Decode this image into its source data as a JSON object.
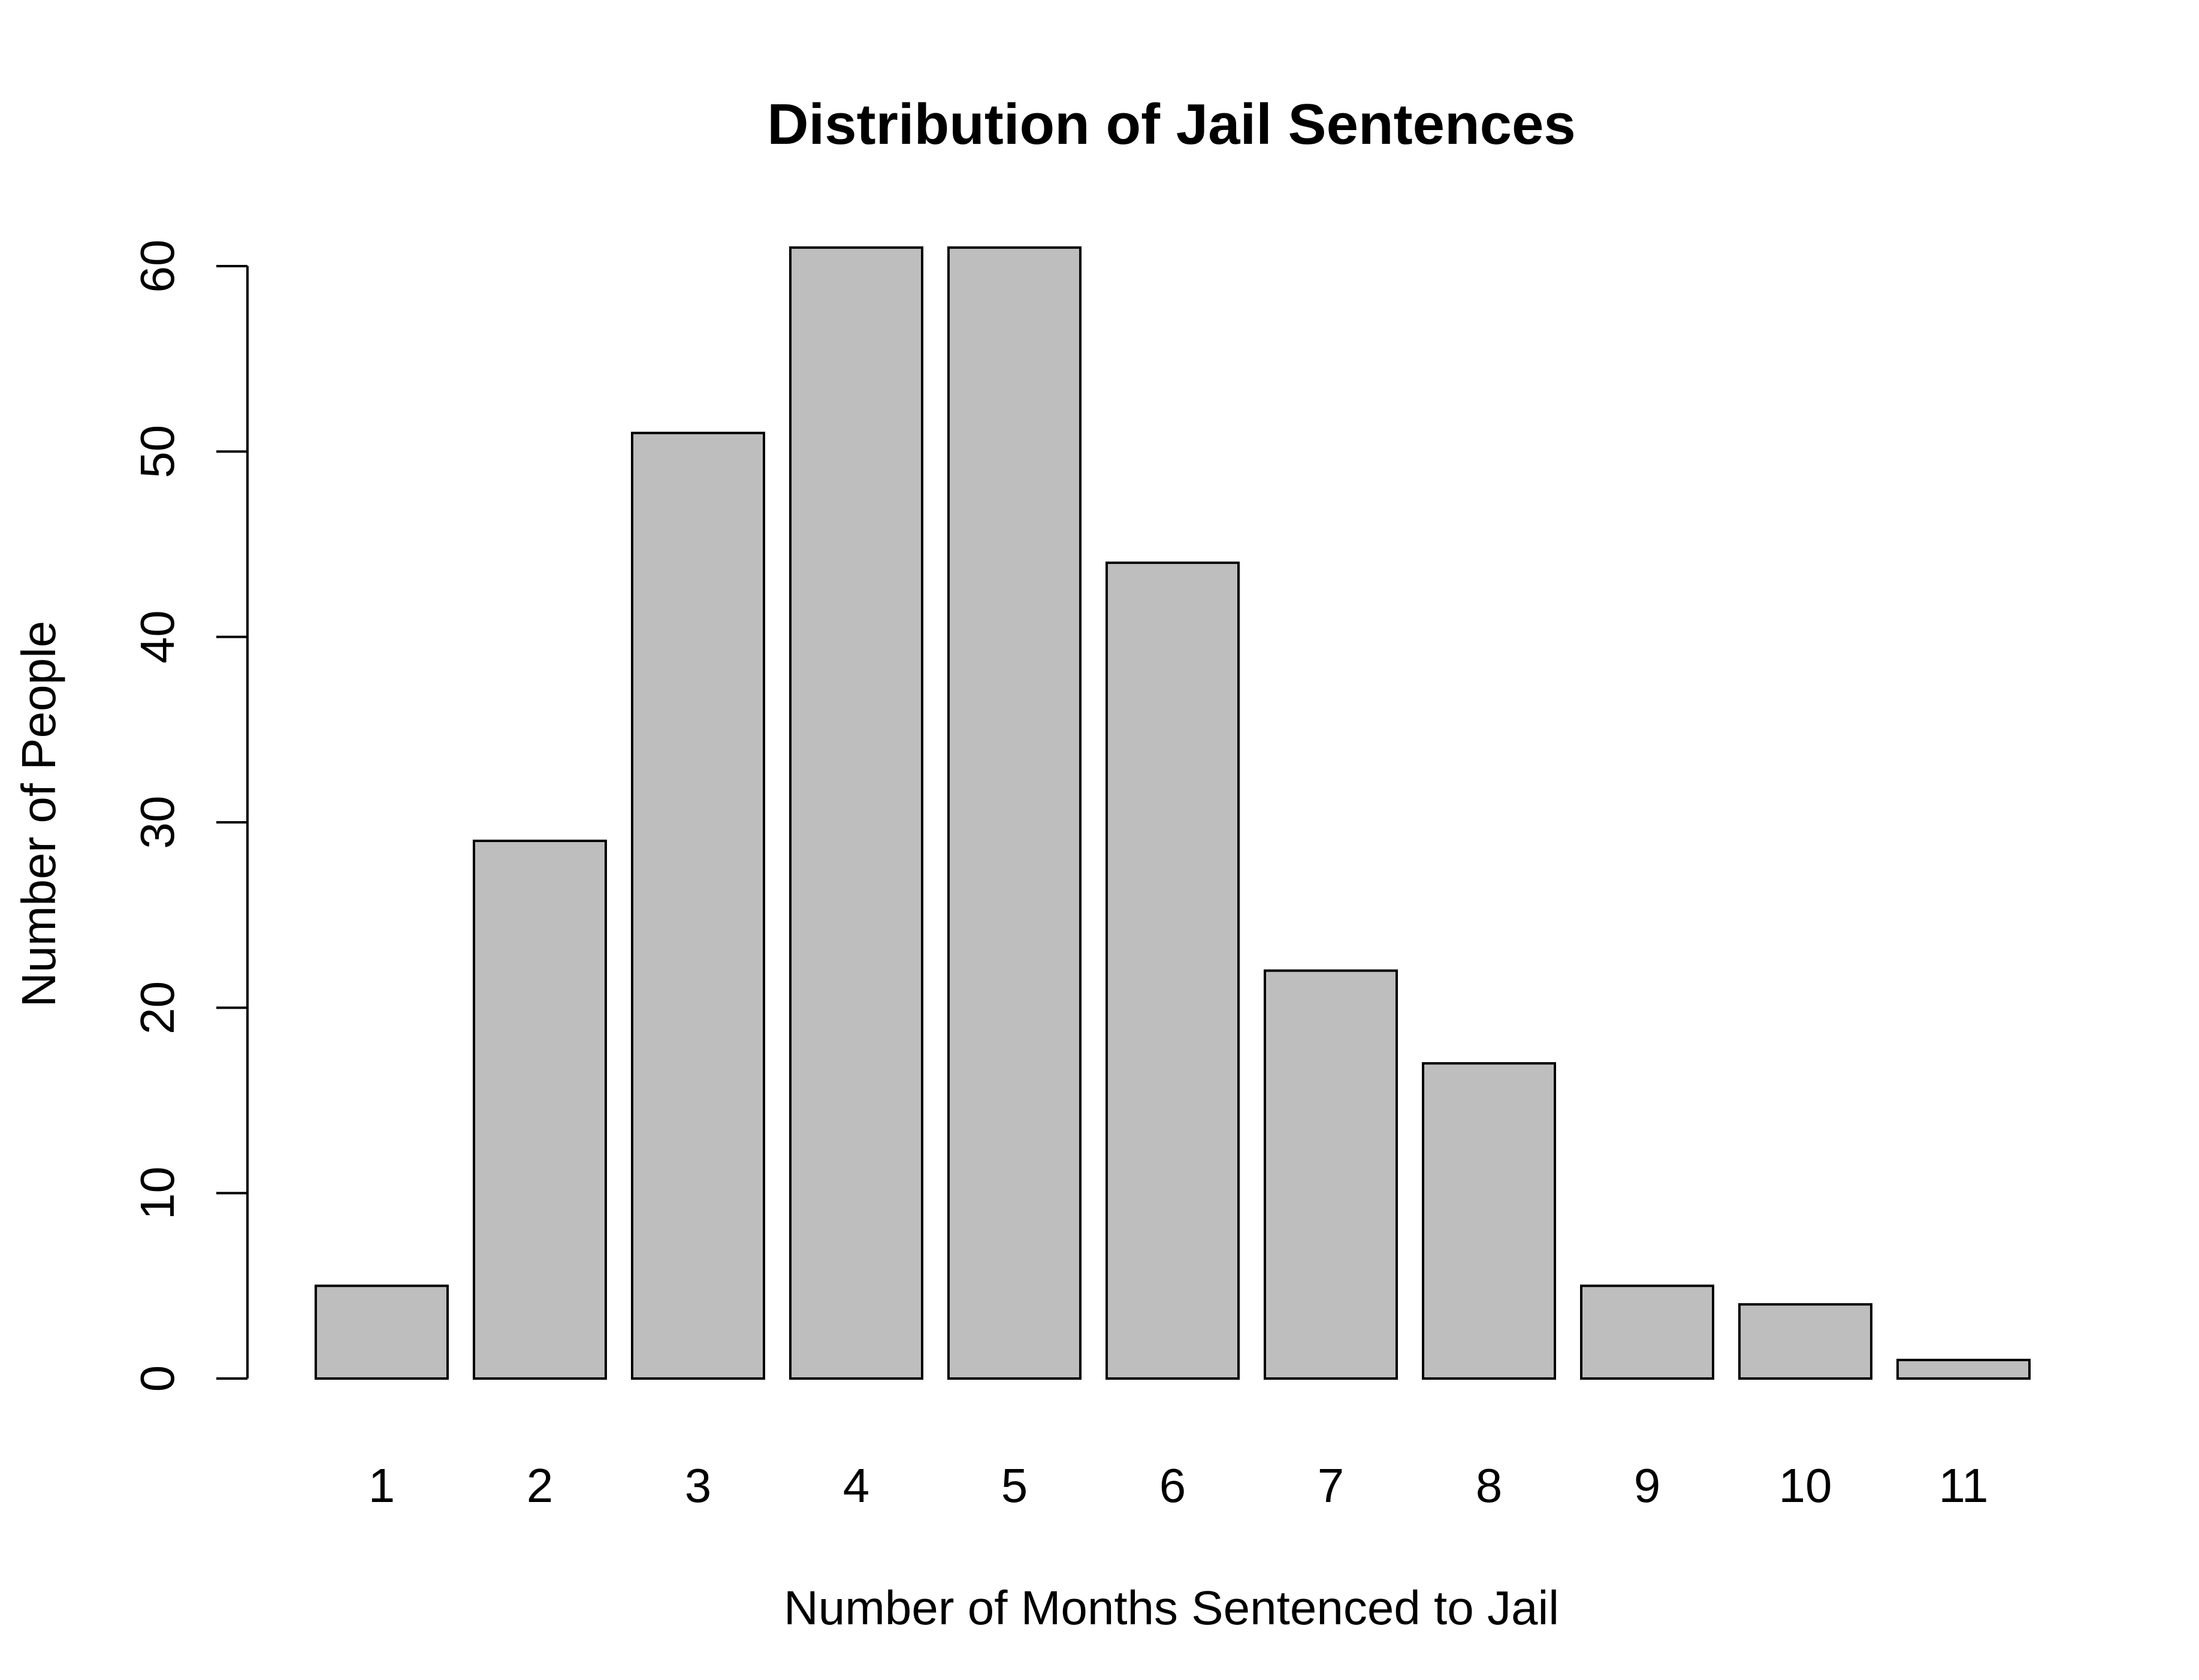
{
  "chart_data": {
    "type": "bar",
    "title": "Distribution of Jail Sentences",
    "xlabel": "Number of Months Sentenced to Jail",
    "ylabel": "Number of People",
    "categories": [
      "1",
      "2",
      "3",
      "4",
      "5",
      "6",
      "7",
      "8",
      "9",
      "10",
      "11"
    ],
    "values": [
      5,
      29,
      51,
      61,
      61,
      44,
      22,
      17,
      5,
      4,
      1
    ],
    "ylim": [
      0,
      60
    ],
    "yticks": [
      "0",
      "10",
      "20",
      "30",
      "40",
      "50",
      "60"
    ],
    "bar_color": "#bebebe",
    "grid": false,
    "legend": "none"
  }
}
